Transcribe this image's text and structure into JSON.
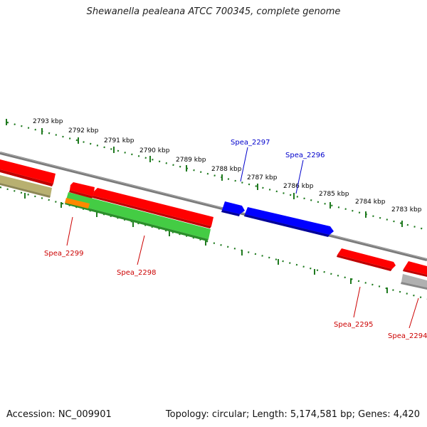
{
  "title": "Shewanella pealeana ATCC 700345, complete genome",
  "footer": {
    "accession": "Accession: NC_009901",
    "stats": "Topology: circular; Length: 5,174,581 bp; Genes: 4,420"
  },
  "colors": {
    "backbone": "#808080",
    "scale": "#1f7a1f",
    "forward_gene_label": "#0000cc",
    "reverse_gene_label": "#cc0000",
    "red_gene": "#ff0000",
    "blue_gene": "#0000ff",
    "green_gene": "#44cc44",
    "orange_gene": "#ff8800",
    "olive_gene": "#b8b070",
    "gray_gene": "#b0b0b0"
  },
  "scale_labels": [
    "2793 kbp",
    "2792 kbp",
    "2791 kbp",
    "2790 kbp",
    "2789 kbp",
    "2788 kbp",
    "2787 kbp",
    "2786 kbp",
    "2785 kbp",
    "2784 kbp",
    "2783 kbp"
  ],
  "gene_labels": {
    "spea_2297": "Spea_2297",
    "spea_2296": "Spea_2296",
    "spea_2299": "Spea_2299",
    "spea_2298": "Spea_2298",
    "spea_2295": "Spea_2295",
    "spea_2294": "Spea_2294"
  }
}
